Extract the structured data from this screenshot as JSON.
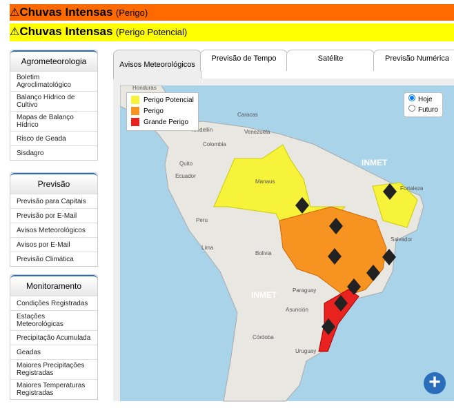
{
  "alerts": [
    {
      "title": "Chuvas Intensas",
      "level": "(Perigo)"
    },
    {
      "title": "Chuvas Intensas",
      "level": "(Perigo Potencial)"
    }
  ],
  "sidebar": [
    {
      "title": "Agrometeorologia",
      "items": [
        "Boletim Agroclimatológico",
        "Balanço Hídrico de Cultivo",
        "Mapas de Balanço Hídrico",
        "Risco de Geada",
        "Sisdagro"
      ]
    },
    {
      "title": "Previsão",
      "items": [
        "Previsão para Capitais",
        "Previsão por E-Mail",
        "Avisos Meteorológicos",
        "Avisos por E-Mail",
        "Previsão Climática"
      ]
    },
    {
      "title": "Monitoramento",
      "items": [
        "Condições Registradas",
        "Estações Meteorológicas",
        "Precipitação Acumulada",
        "Geadas",
        "Maiores Precipitações Registradas",
        "Maiores Temperaturas Registradas"
      ]
    }
  ],
  "tabs": [
    "Avisos Meteorológicos",
    "Previsão de Tempo",
    "Satélite",
    "Previsão Numérica"
  ],
  "map": {
    "legend": [
      "Perigo Potencial",
      "Perigo",
      "Grande Perigo"
    ],
    "options": [
      "Hoje",
      "Futuro"
    ],
    "watermark": "INMET",
    "places": [
      "Honduras",
      "Caracas",
      "Medellín",
      "Venezuela",
      "Colombia",
      "Quito",
      "Ecuador",
      "Manaus",
      "Peru",
      "Lima",
      "Bolivia",
      "Salvador",
      "Paraguay",
      "Asunción",
      "Córdoba",
      "Uruguay",
      "Fortaleza"
    ]
  }
}
